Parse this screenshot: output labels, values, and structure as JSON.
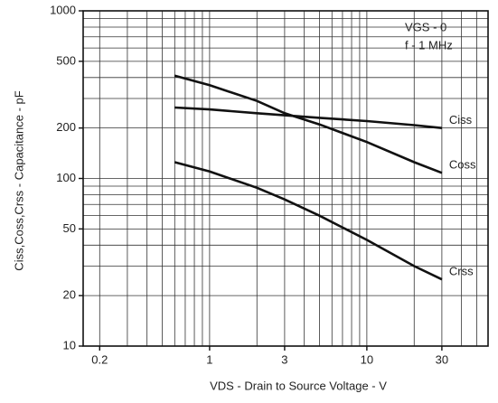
{
  "chart_data": {
    "type": "line",
    "x_label": "VDS - Drain to Source Voltage - V",
    "y_label": "Ciss,Coss,Crss - Capacitance - pF",
    "annotations": [
      "VGS - 0",
      "f - 1 MHz"
    ],
    "log_x": true,
    "log_y": true,
    "grid": true,
    "x": [
      0.6,
      1,
      2,
      3,
      5,
      10,
      20,
      30
    ],
    "series": [
      {
        "name": "Coss",
        "color": "#111",
        "values": [
          410,
          360,
          290,
          245,
          210,
          165,
          125,
          108
        ]
      },
      {
        "name": "Ciss",
        "color": "#111",
        "values": [
          265,
          258,
          245,
          238,
          230,
          220,
          208,
          200
        ]
      },
      {
        "name": "Crss",
        "color": "#111",
        "values": [
          125,
          110,
          88,
          75,
          60,
          43,
          30,
          25
        ]
      }
    ],
    "xlim": [
      0.157,
      59
    ],
    "ylim": [
      10,
      1000
    ],
    "xticks": [
      0.2,
      1,
      3,
      10,
      30
    ],
    "yticks": [
      10,
      20,
      50,
      100,
      200,
      500,
      1000
    ],
    "x_minor_ticks": [
      0.2,
      0.3,
      0.4,
      0.5,
      0.6,
      0.7,
      0.8,
      0.9,
      1,
      2,
      3,
      4,
      5,
      6,
      7,
      8,
      9,
      10,
      20,
      30,
      40,
      50
    ],
    "y_minor_ticks": [
      20,
      30,
      40,
      50,
      60,
      70,
      80,
      90,
      100,
      200,
      300,
      400,
      500,
      600,
      700,
      800,
      900
    ]
  }
}
